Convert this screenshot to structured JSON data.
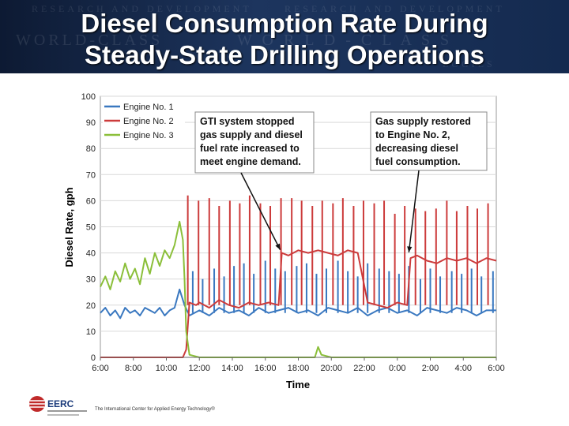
{
  "slide": {
    "title_line1": "Diesel Consumption Rate During",
    "title_line2": "Steady-State Drilling Operations",
    "footer_text": "The International Center for Applied Energy Technology®",
    "logo_text": "EERC"
  },
  "chart_data": {
    "type": "line",
    "xlabel": "Time",
    "ylabel": "Diesel Rate, gph",
    "xlim": [
      0,
      24
    ],
    "ylim": [
      0,
      100
    ],
    "y_ticks": [
      0,
      10,
      20,
      30,
      40,
      50,
      60,
      70,
      80,
      90,
      100
    ],
    "x_tick_labels": [
      "6:00",
      "8:00",
      "10:00",
      "12:00",
      "14:00",
      "16:00",
      "18:00",
      "20:00",
      "22:00",
      "0:00",
      "2:00",
      "4:00",
      "6:00"
    ],
    "grid": true,
    "legend_position": "top-left",
    "series": [
      {
        "name": "Engine No. 1",
        "color": "#3a78c0",
        "x": [
          0.0,
          0.3,
          0.6,
          0.9,
          1.2,
          1.5,
          1.8,
          2.1,
          2.4,
          2.7,
          3.0,
          3.3,
          3.6,
          3.9,
          4.2,
          4.5,
          4.8,
          5.1,
          5.4,
          6.0,
          6.6,
          7.2,
          7.8,
          8.4,
          9.0,
          9.6,
          10.2,
          10.8,
          11.4,
          12.0,
          12.6,
          13.2,
          13.8,
          14.4,
          15.0,
          15.6,
          16.2,
          16.8,
          17.4,
          18.0,
          18.6,
          19.2,
          19.8,
          20.4,
          21.0,
          21.6,
          22.2,
          22.8,
          23.4,
          24.0
        ],
        "values": [
          17,
          19,
          16,
          18,
          15,
          19,
          17,
          18,
          16,
          19,
          18,
          17,
          19,
          16,
          18,
          19,
          26,
          20,
          16,
          18,
          16,
          19,
          17,
          18,
          16,
          19,
          17,
          18,
          19,
          17,
          18,
          16,
          19,
          18,
          17,
          19,
          16,
          18,
          19,
          17,
          18,
          16,
          19,
          18,
          17,
          19,
          18,
          16,
          18,
          18
        ]
      },
      {
        "name": "Engine No. 2",
        "color": "#cc3b3b",
        "x": [
          0.0,
          1.0,
          2.0,
          3.0,
          4.0,
          5.0,
          5.2,
          5.4,
          5.8,
          6.0,
          6.6,
          7.2,
          7.8,
          8.4,
          9.0,
          9.6,
          10.2,
          10.8,
          11.0,
          11.4,
          12.0,
          12.6,
          13.2,
          13.8,
          14.4,
          15.0,
          15.6,
          16.2,
          16.8,
          17.4,
          18.0,
          18.6,
          18.8,
          19.2,
          19.8,
          20.4,
          21.0,
          21.6,
          22.2,
          22.8,
          23.4,
          24.0
        ],
        "values": [
          0,
          0,
          0,
          0,
          0,
          0,
          3,
          21,
          20,
          21,
          19,
          22,
          20,
          19,
          21,
          20,
          21,
          20,
          40,
          39,
          41,
          40,
          41,
          40,
          39,
          41,
          40,
          21,
          20,
          19,
          21,
          20,
          38,
          39,
          37,
          36,
          38,
          37,
          38,
          36,
          38,
          37
        ]
      },
      {
        "name": "Engine No. 3",
        "color": "#8bbf3a",
        "x": [
          0.0,
          0.3,
          0.6,
          0.9,
          1.2,
          1.5,
          1.8,
          2.1,
          2.4,
          2.7,
          3.0,
          3.3,
          3.6,
          3.9,
          4.2,
          4.5,
          4.8,
          5.0,
          5.1,
          5.2,
          5.4,
          6.0,
          8.0,
          10.0,
          12.0,
          13.0,
          13.2,
          13.4,
          14.0,
          18.0,
          24.0
        ],
        "values": [
          27,
          31,
          26,
          33,
          29,
          36,
          30,
          34,
          28,
          38,
          32,
          40,
          35,
          41,
          38,
          43,
          52,
          45,
          30,
          10,
          1,
          0,
          0,
          0,
          0,
          0,
          4,
          1,
          0,
          0,
          0
        ]
      }
    ],
    "spikes": [
      {
        "series": "Engine No. 2",
        "x": [
          5.3,
          5.95,
          6.6,
          7.2,
          7.85,
          8.45,
          9.05,
          9.7,
          10.3,
          10.95,
          11.6,
          12.2,
          12.85,
          13.45,
          14.1,
          14.7,
          15.35,
          15.95,
          16.6,
          17.2,
          17.85,
          18.45,
          19.1,
          19.7,
          20.35,
          21.0,
          21.6,
          22.25,
          22.85,
          23.5
        ],
        "values": [
          62,
          60,
          61,
          58,
          60,
          59,
          62,
          59,
          58,
          61,
          61,
          60,
          58,
          60,
          59,
          61,
          58,
          60,
          59,
          60,
          55,
          58,
          57,
          56,
          57,
          60,
          56,
          58,
          57,
          59
        ]
      },
      {
        "series": "Engine No. 1",
        "x": [
          5.6,
          6.2,
          6.9,
          7.5,
          8.1,
          8.7,
          9.3,
          10.0,
          10.6,
          11.2,
          11.9,
          12.5,
          13.1,
          13.7,
          14.4,
          15.0,
          15.6,
          16.2,
          16.9,
          17.5,
          18.1,
          18.7,
          19.4,
          20.0,
          20.6,
          21.3,
          21.9,
          22.5,
          23.1,
          23.8
        ],
        "values": [
          33,
          30,
          34,
          31,
          35,
          36,
          32,
          37,
          34,
          33,
          35,
          36,
          32,
          34,
          37,
          33,
          31,
          36,
          34,
          33,
          32,
          35,
          30,
          34,
          31,
          33,
          32,
          34,
          31,
          33
        ]
      }
    ],
    "annotations": [
      {
        "text_lines": [
          "GTI system stopped",
          "gas supply and diesel",
          "fuel rate increased to",
          "meet engine demand."
        ],
        "target": [
          10.9,
          40
        ]
      },
      {
        "text_lines": [
          "Gas supply restored",
          "to Engine No. 2,",
          "decreasing diesel",
          "fuel consumption."
        ],
        "target": [
          18.7,
          39
        ]
      }
    ]
  }
}
